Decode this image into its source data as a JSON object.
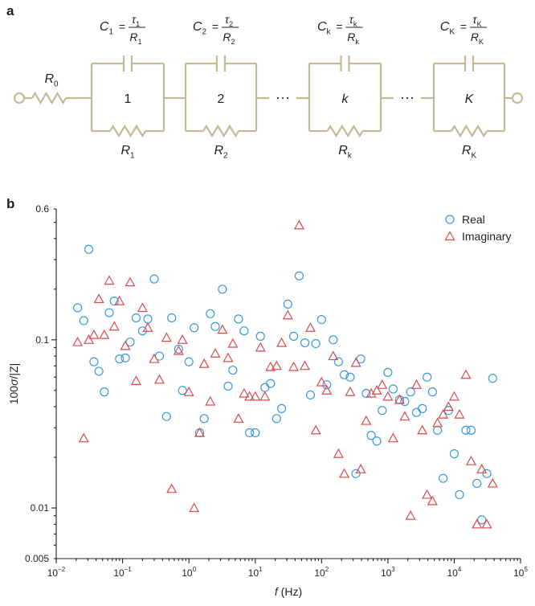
{
  "panels": {
    "a": "a",
    "b": "b"
  },
  "circuit": {
    "r0": {
      "main": "R",
      "sub": "0"
    },
    "blocks": [
      {
        "index": "1",
        "index_italic": false,
        "cap_c": "C",
        "cap_sub": "1",
        "tau": "τ",
        "tau_sub": "1",
        "cap_r": "R",
        "cap_r_sub": "1",
        "res": "R",
        "res_sub": "1"
      },
      {
        "index": "2",
        "index_italic": false,
        "cap_c": "C",
        "cap_sub": "2",
        "tau": "τ",
        "tau_sub": "2",
        "cap_r": "R",
        "cap_r_sub": "2",
        "res": "R",
        "res_sub": "2"
      },
      {
        "index": "k",
        "index_italic": true,
        "cap_c": "C",
        "cap_sub": "k",
        "tau": "τ",
        "tau_sub": "k",
        "cap_r": "R",
        "cap_r_sub": "k",
        "res": "R",
        "res_sub": "k"
      },
      {
        "index": "K",
        "index_italic": true,
        "cap_c": "C",
        "cap_sub": "K",
        "tau": "τ",
        "tau_sub": "K",
        "cap_r": "R",
        "cap_r_sub": "K",
        "res": "R",
        "res_sub": "K"
      }
    ],
    "ellipsis": "···",
    "equals": "=",
    "wire_color": "#c2bb97"
  },
  "chart_data": {
    "type": "scatter",
    "xscale": "log",
    "yscale": "log",
    "xlim": [
      0.01,
      100000
    ],
    "ylim": [
      0.005,
      0.6
    ],
    "xlabel": {
      "italic": "f",
      "rest": " (Hz)"
    },
    "ylabel": {
      "prefix": "100",
      "sigma": "σ",
      "suffix": "/|Z|"
    },
    "x_ticks": [
      {
        "value": 0.01,
        "base": "10",
        "exp": "−2"
      },
      {
        "value": 0.1,
        "base": "10",
        "exp": "−1"
      },
      {
        "value": 1,
        "base": "10",
        "exp": "0"
      },
      {
        "value": 10,
        "base": "10",
        "exp": "1"
      },
      {
        "value": 100,
        "base": "10",
        "exp": "2"
      },
      {
        "value": 1000,
        "base": "10",
        "exp": "3"
      },
      {
        "value": 10000,
        "base": "10",
        "exp": "4"
      },
      {
        "value": 100000,
        "base": "10",
        "exp": "5"
      }
    ],
    "y_ticks": [
      {
        "value": 0.005,
        "label": "0.005"
      },
      {
        "value": 0.01,
        "label": "0.01"
      },
      {
        "value": 0.1,
        "label": "0.1"
      },
      {
        "value": 0.6,
        "label": "0.6"
      }
    ],
    "legend": {
      "position": "top-right",
      "entries": [
        "Real",
        "Imaginary"
      ]
    },
    "series": [
      {
        "name": "Real",
        "marker": "circle",
        "color": "#3a9ad9",
        "points": [
          [
            0.021,
            0.155
          ],
          [
            0.026,
            0.13
          ],
          [
            0.031,
            0.345
          ],
          [
            0.037,
            0.074
          ],
          [
            0.044,
            0.065
          ],
          [
            0.053,
            0.049
          ],
          [
            0.063,
            0.145
          ],
          [
            0.075,
            0.17
          ],
          [
            0.09,
            0.077
          ],
          [
            0.11,
            0.078
          ],
          [
            0.13,
            0.097
          ],
          [
            0.16,
            0.135
          ],
          [
            0.2,
            0.113
          ],
          [
            0.24,
            0.133
          ],
          [
            0.3,
            0.23
          ],
          [
            0.36,
            0.08
          ],
          [
            0.46,
            0.035
          ],
          [
            0.55,
            0.135
          ],
          [
            0.7,
            0.088
          ],
          [
            0.8,
            0.05
          ],
          [
            1.0,
            0.074
          ],
          [
            1.2,
            0.118
          ],
          [
            1.45,
            0.028
          ],
          [
            1.7,
            0.034
          ],
          [
            2.1,
            0.143
          ],
          [
            2.5,
            0.12
          ],
          [
            3.2,
            0.2
          ],
          [
            3.9,
            0.053
          ],
          [
            4.6,
            0.066
          ],
          [
            5.6,
            0.133
          ],
          [
            6.8,
            0.113
          ],
          [
            8.2,
            0.028
          ],
          [
            10,
            0.028
          ],
          [
            12,
            0.105
          ],
          [
            14,
            0.052
          ],
          [
            17,
            0.055
          ],
          [
            21,
            0.034
          ],
          [
            25,
            0.039
          ],
          [
            31,
            0.163
          ],
          [
            38,
            0.105
          ],
          [
            46,
            0.24
          ],
          [
            56,
            0.096
          ],
          [
            68,
            0.047
          ],
          [
            82,
            0.095
          ],
          [
            100,
            0.132
          ],
          [
            120,
            0.054
          ],
          [
            150,
            0.1
          ],
          [
            180,
            0.074
          ],
          [
            220,
            0.062
          ],
          [
            270,
            0.06
          ],
          [
            330,
            0.016
          ],
          [
            390,
            0.077
          ],
          [
            470,
            0.048
          ],
          [
            560,
            0.027
          ],
          [
            680,
            0.025
          ],
          [
            820,
            0.038
          ],
          [
            1000,
            0.064
          ],
          [
            1200,
            0.051
          ],
          [
            1500,
            0.044
          ],
          [
            1800,
            0.043
          ],
          [
            2200,
            0.049
          ],
          [
            2700,
            0.037
          ],
          [
            3300,
            0.039
          ],
          [
            3900,
            0.06
          ],
          [
            4700,
            0.049
          ],
          [
            5600,
            0.029
          ],
          [
            6800,
            0.015
          ],
          [
            8200,
            0.038
          ],
          [
            10000,
            0.021
          ],
          [
            12000,
            0.012
          ],
          [
            15000,
            0.029
          ],
          [
            18000,
            0.029
          ],
          [
            22000,
            0.014
          ],
          [
            26000,
            0.0085
          ],
          [
            31000,
            0.016
          ],
          [
            38000,
            0.059
          ]
        ]
      },
      {
        "name": "Imaginary",
        "marker": "triangle",
        "color": "#d94a4f",
        "points": [
          [
            0.021,
            0.097
          ],
          [
            0.026,
            0.026
          ],
          [
            0.031,
            0.1
          ],
          [
            0.037,
            0.107
          ],
          [
            0.044,
            0.175
          ],
          [
            0.053,
            0.107
          ],
          [
            0.063,
            0.225
          ],
          [
            0.075,
            0.12
          ],
          [
            0.09,
            0.17
          ],
          [
            0.11,
            0.092
          ],
          [
            0.13,
            0.22
          ],
          [
            0.16,
            0.057
          ],
          [
            0.2,
            0.155
          ],
          [
            0.24,
            0.118
          ],
          [
            0.3,
            0.077
          ],
          [
            0.36,
            0.058
          ],
          [
            0.46,
            0.103
          ],
          [
            0.55,
            0.013
          ],
          [
            0.7,
            0.086
          ],
          [
            0.8,
            0.1
          ],
          [
            1.0,
            0.049
          ],
          [
            1.2,
            0.01
          ],
          [
            1.45,
            0.028
          ],
          [
            1.7,
            0.072
          ],
          [
            2.1,
            0.043
          ],
          [
            2.5,
            0.083
          ],
          [
            3.2,
            0.115
          ],
          [
            3.9,
            0.078
          ],
          [
            4.6,
            0.095
          ],
          [
            5.6,
            0.034
          ],
          [
            6.8,
            0.048
          ],
          [
            8.2,
            0.046
          ],
          [
            10,
            0.046
          ],
          [
            12,
            0.09
          ],
          [
            14,
            0.046
          ],
          [
            17,
            0.069
          ],
          [
            21,
            0.07
          ],
          [
            25,
            0.096
          ],
          [
            31,
            0.14
          ],
          [
            38,
            0.069
          ],
          [
            46,
            0.48
          ],
          [
            56,
            0.07
          ],
          [
            68,
            0.118
          ],
          [
            82,
            0.029
          ],
          [
            100,
            0.056
          ],
          [
            120,
            0.05
          ],
          [
            150,
            0.08
          ],
          [
            180,
            0.021
          ],
          [
            220,
            0.016
          ],
          [
            270,
            0.049
          ],
          [
            330,
            0.073
          ],
          [
            390,
            0.017
          ],
          [
            470,
            0.033
          ],
          [
            560,
            0.048
          ],
          [
            680,
            0.05
          ],
          [
            820,
            0.054
          ],
          [
            1000,
            0.046
          ],
          [
            1200,
            0.026
          ],
          [
            1500,
            0.044
          ],
          [
            1800,
            0.035
          ],
          [
            2200,
            0.009
          ],
          [
            2700,
            0.054
          ],
          [
            3300,
            0.029
          ],
          [
            3900,
            0.012
          ],
          [
            4700,
            0.011
          ],
          [
            5600,
            0.032
          ],
          [
            6800,
            0.036
          ],
          [
            8200,
            0.04
          ],
          [
            10000,
            0.046
          ],
          [
            12000,
            0.036
          ],
          [
            15000,
            0.062
          ],
          [
            18000,
            0.019
          ],
          [
            22000,
            0.008
          ],
          [
            26000,
            0.017
          ],
          [
            31000,
            0.008
          ],
          [
            38000,
            0.014
          ]
        ]
      }
    ]
  }
}
